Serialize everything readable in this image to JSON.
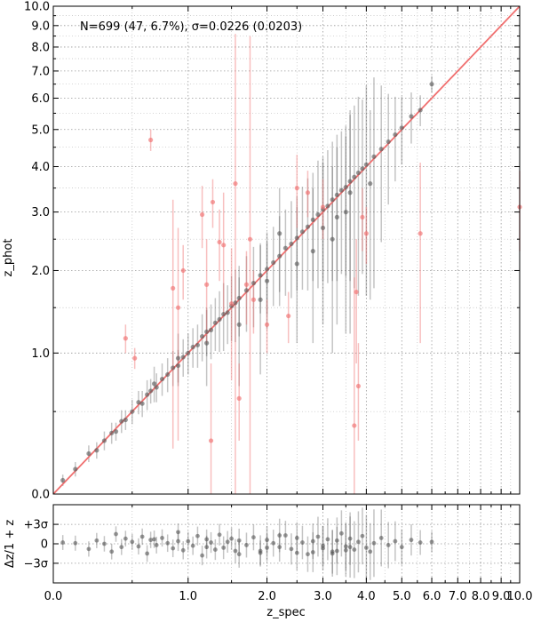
{
  "chart_data": [
    {
      "panel": "main",
      "type": "scatter",
      "annotation": "N=699 (47,  6.7%), σ=0.0226 (0.0203)",
      "xlabel": "z_spec",
      "ylabel": "z_phot",
      "x_scale": "log(1+z)",
      "y_scale": "log(1+z)",
      "xlim": [
        0.0,
        10.0
      ],
      "ylim": [
        0.0,
        10.0
      ],
      "grid": true,
      "y_tick_labels": [
        "0.0",
        "1.0",
        "2.0",
        "3.0",
        "4.0",
        "5.0",
        "6.0",
        "7.0",
        "8.0",
        "9.0",
        "10.0"
      ],
      "y_tick_values": [
        0,
        1,
        2,
        3,
        4,
        5,
        6,
        7,
        8,
        9,
        10
      ],
      "one_to_one_line": {
        "color": "#f07070",
        "from": [
          0.0,
          0.0
        ],
        "to": [
          10.0,
          10.0
        ]
      },
      "series": [
        {
          "color": "#555555",
          "points": [
            [
              0.05,
              0.07
            ],
            [
              0.12,
              0.13
            ],
            [
              0.2,
              0.22
            ],
            [
              0.25,
              0.24
            ],
            [
              0.3,
              0.3
            ],
            [
              0.35,
              0.35
            ],
            [
              0.38,
              0.36
            ],
            [
              0.42,
              0.43
            ],
            [
              0.45,
              0.44
            ],
            [
              0.5,
              0.5
            ],
            [
              0.55,
              0.57
            ],
            [
              0.58,
              0.56
            ],
            [
              0.62,
              0.63
            ],
            [
              0.65,
              0.66
            ],
            [
              0.7,
              0.69
            ],
            [
              0.75,
              0.76
            ],
            [
              0.8,
              0.8
            ],
            [
              0.85,
              0.86
            ],
            [
              0.9,
              0.88
            ],
            [
              0.95,
              0.96
            ],
            [
              1.0,
              1.0
            ],
            [
              1.05,
              1.06
            ],
            [
              1.1,
              1.08
            ],
            [
              1.15,
              1.17
            ],
            [
              1.2,
              1.22
            ],
            [
              1.25,
              1.24
            ],
            [
              1.3,
              1.32
            ],
            [
              1.35,
              1.36
            ],
            [
              1.4,
              1.42
            ],
            [
              1.45,
              1.44
            ],
            [
              1.5,
              1.52
            ],
            [
              1.55,
              1.56
            ],
            [
              1.6,
              1.62
            ],
            [
              1.7,
              1.72
            ],
            [
              1.8,
              1.82
            ],
            [
              1.9,
              1.93
            ],
            [
              2.0,
              2.02
            ],
            [
              2.1,
              2.12
            ],
            [
              2.2,
              2.22
            ],
            [
              2.3,
              2.35
            ],
            [
              2.4,
              2.42
            ],
            [
              2.5,
              2.52
            ],
            [
              2.6,
              2.63
            ],
            [
              2.7,
              2.72
            ],
            [
              2.8,
              2.85
            ],
            [
              2.9,
              2.95
            ],
            [
              3.0,
              3.05
            ],
            [
              3.1,
              3.12
            ],
            [
              3.2,
              3.25
            ],
            [
              3.3,
              3.35
            ],
            [
              3.4,
              3.45
            ],
            [
              3.5,
              3.52
            ],
            [
              3.6,
              3.65
            ],
            [
              3.7,
              3.75
            ],
            [
              3.8,
              3.85
            ],
            [
              3.9,
              3.95
            ],
            [
              4.0,
              4.05
            ],
            [
              4.2,
              4.25
            ],
            [
              4.4,
              4.45
            ],
            [
              4.6,
              4.65
            ],
            [
              4.8,
              4.85
            ],
            [
              5.0,
              5.05
            ],
            [
              5.3,
              5.4
            ],
            [
              5.6,
              5.6
            ],
            [
              6.0,
              6.5
            ],
            [
              3.2,
              2.5
            ],
            [
              2.8,
              2.3
            ],
            [
              1.9,
              1.6
            ],
            [
              1.6,
              1.3
            ],
            [
              3.5,
              3.0
            ],
            [
              4.1,
              3.6
            ],
            [
              3.0,
              2.7
            ],
            [
              2.5,
              2.1
            ],
            [
              1.2,
              1.1
            ],
            [
              0.9,
              0.95
            ],
            [
              0.68,
              0.72
            ],
            [
              2.0,
              1.85
            ],
            [
              3.6,
              3.4
            ],
            [
              3.3,
              2.9
            ],
            [
              2.2,
              2.6
            ]
          ],
          "yerr": [
            0.03,
            0.04,
            0.05,
            0.05,
            0.06,
            0.07,
            0.06,
            0.08,
            0.07,
            0.09,
            0.09,
            0.1,
            0.12,
            0.1,
            0.12,
            0.14,
            0.15,
            0.16,
            0.15,
            0.18,
            0.2,
            0.2,
            0.22,
            0.25,
            0.25,
            0.3,
            0.3,
            0.35,
            0.4,
            0.35,
            0.4,
            0.45,
            0.45,
            0.5,
            0.55,
            0.5,
            0.6,
            0.6,
            0.7,
            0.7,
            0.8,
            0.8,
            0.9,
            1.0,
            1.0,
            1.2,
            1.2,
            1.3,
            1.4,
            1.5,
            1.5,
            1.6,
            1.8,
            2.0,
            2.2,
            2.0,
            2.4,
            2.5,
            2.0,
            1.5,
            1.2,
            1.0,
            0.8,
            0.5,
            0.3,
            1.5,
            1.2,
            0.8,
            0.6,
            1.8,
            2.0,
            1.4,
            1.0,
            0.4,
            0.25,
            0.15,
            0.6,
            2.2,
            1.6,
            0.9
          ],
          "residual": [
            0.2,
            0.1,
            -0.8,
            0.5,
            0.0,
            -1.2,
            1.5,
            -0.5,
            0.8,
            0.3,
            -0.4,
            1.1,
            -1.5,
            0.6,
            -0.2,
            0.9,
            0.1,
            -0.7,
            1.8,
            -1.0,
            0.4,
            -0.3,
            1.2,
            -1.8,
            0.7,
            0.2,
            -0.9,
            1.4,
            -0.6,
            0.3,
            0.8,
            -1.1,
            0.5,
            -0.2,
            1.0,
            -1.4,
            0.6,
            0.1,
            -0.5,
            1.3,
            -0.8,
            0.9,
            0.2,
            -1.6,
            0.4,
            1.1,
            -0.3,
            0.7,
            -1.2,
            0.5,
            1.6,
            -0.4,
            0.8,
            -0.9,
            0.3,
            1.2,
            -0.6,
            0.1,
            0.9,
            -0.2,
            0.4,
            -0.5,
            0.6,
            0.2,
            0.3,
            -1.5,
            -1.3,
            -1.1,
            -1.6,
            -1.0,
            -1.2,
            -0.7,
            -1.4,
            -0.5,
            0.4,
            0.7,
            -0.6,
            -0.5,
            -1.1,
            1.3
          ]
        },
        {
          "color": "#f07070",
          "points": [
            [
              0.45,
              1.15
            ],
            [
              0.52,
              0.95
            ],
            [
              0.65,
              4.7
            ],
            [
              0.85,
              1.75
            ],
            [
              0.9,
              1.5
            ],
            [
              0.95,
              2.0
            ],
            [
              1.15,
              2.95
            ],
            [
              1.2,
              1.8
            ],
            [
              1.25,
              0.3
            ],
            [
              1.27,
              3.2
            ],
            [
              1.35,
              2.45
            ],
            [
              1.4,
              2.4
            ],
            [
              1.5,
              1.55
            ],
            [
              1.55,
              3.6
            ],
            [
              1.6,
              0.6
            ],
            [
              1.7,
              1.8
            ],
            [
              1.75,
              2.5
            ],
            [
              2.0,
              1.3
            ],
            [
              2.35,
              1.4
            ],
            [
              2.5,
              3.5
            ],
            [
              2.7,
              3.4
            ],
            [
              3.0,
              3.1
            ],
            [
              3.7,
              0.4
            ],
            [
              3.75,
              1.7
            ],
            [
              3.8,
              0.7
            ],
            [
              3.9,
              2.9
            ],
            [
              4.0,
              2.6
            ],
            [
              5.6,
              2.6
            ],
            [
              10.0,
              3.1
            ],
            [
              1.8,
              1.6
            ]
          ],
          "yerr": [
            0.15,
            0.1,
            0.3,
            1.5,
            1.2,
            0.4,
            0.6,
            0.7,
            0.6,
            0.5,
            0.6,
            1.0,
            0.8,
            5.0,
            0.3,
            0.5,
            6.0,
            0.3,
            0.3,
            0.8,
            0.5,
            0.6,
            1.5,
            0.8,
            0.4,
            0.6,
            0.5,
            1.5,
            0.8,
            0.4
          ]
        }
      ],
      "residual_panel": {
        "ylabel": "Δz/1 + z",
        "y_tick_labels": [
          "+3σ",
          "0",
          "−3σ"
        ],
        "y_tick_values": [
          3,
          0,
          -3
        ],
        "ylim": [
          -6,
          4.5
        ]
      }
    }
  ]
}
